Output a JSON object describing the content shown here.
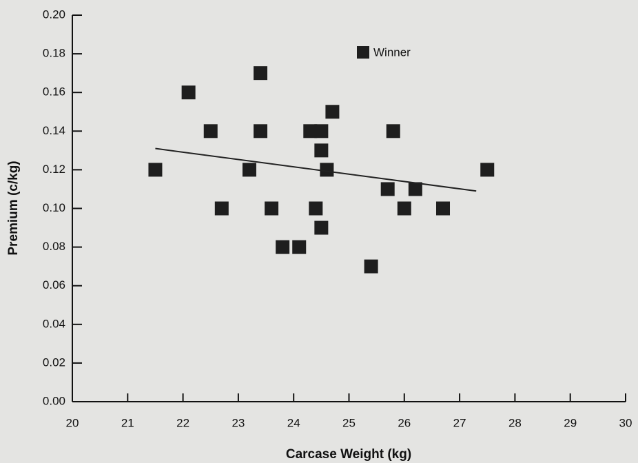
{
  "chart_data": {
    "type": "scatter",
    "xlabel": "Carcase Weight (kg)",
    "ylabel": "Premium (c/kg)",
    "xlim": [
      20,
      30
    ],
    "xticks": [
      20,
      21,
      22,
      23,
      24,
      25,
      26,
      27,
      28,
      29,
      30
    ],
    "ylim": [
      0,
      0.2
    ],
    "yticks": [
      {
        "value": 0,
        "label": "0.00"
      },
      0.02,
      0.04,
      0.06,
      0.08,
      {
        "value": 0.1,
        "label": "0.10"
      },
      0.12,
      0.14,
      0.16,
      0.18,
      {
        "value": 0.2,
        "label": "0.20"
      }
    ],
    "legend": "top",
    "series": [
      {
        "name": "Winner",
        "color": "#1e1e1e",
        "x": [
          21.5,
          22.1,
          22.5,
          22.7,
          23.2,
          23.4,
          23.4,
          23.6,
          23.8,
          24.1,
          24.3,
          24.4,
          24.5,
          24.5,
          24.5,
          24.7,
          24.6,
          25.4,
          25.7,
          25.8,
          26.0,
          26.2,
          26.7,
          27.5
        ],
        "y": [
          0.12,
          0.16,
          0.14,
          0.1,
          0.12,
          0.17,
          0.14,
          0.1,
          0.08,
          0.08,
          0.14,
          0.1,
          0.13,
          0.14,
          0.09,
          0.15,
          0.12,
          0.07,
          0.11,
          0.14,
          0.1,
          0.11,
          0.1,
          0.12
        ]
      }
    ],
    "trendline": {
      "x": [
        21.5,
        27.3
      ],
      "y": [
        0.131,
        0.109
      ]
    }
  }
}
